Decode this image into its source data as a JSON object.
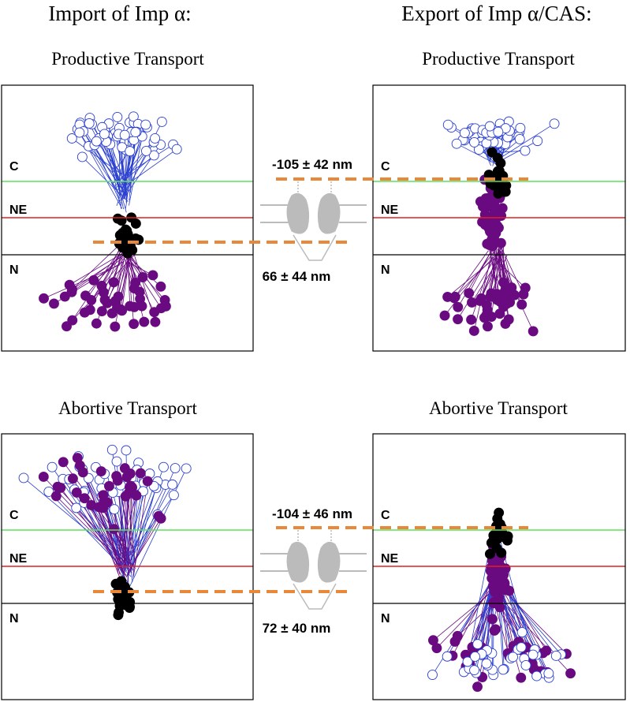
{
  "columns": [
    {
      "title": "Import of Imp α:",
      "panels": [
        {
          "title": "Productive Transport",
          "measurement": "66 ± 44 nm"
        },
        {
          "title": "Abortive Transport",
          "measurement": "72 ± 40 nm"
        }
      ]
    },
    {
      "title": "Export of Imp α/CAS:",
      "panels": [
        {
          "title": "Productive Transport",
          "measurement": "-105 ± 42 nm"
        },
        {
          "title": "Abortive Transport",
          "measurement": "-104 ± 46 nm"
        }
      ]
    }
  ],
  "region_labels": [
    "C",
    "NE",
    "N"
  ]
}
